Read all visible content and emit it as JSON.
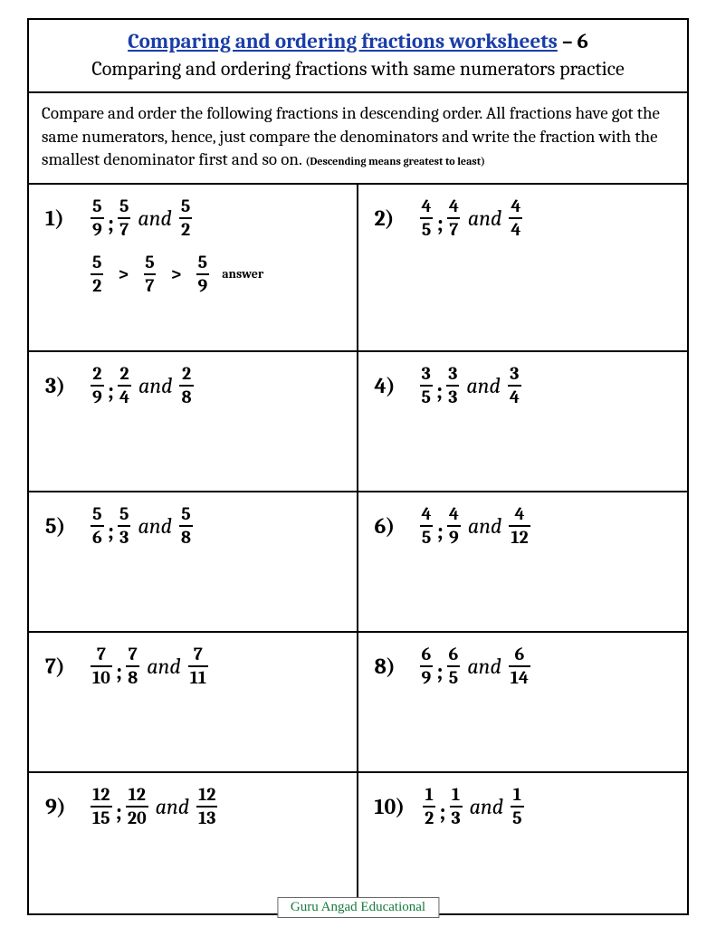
{
  "header": {
    "title_link": "Comparing and ordering fractions worksheets",
    "title_suffix": " – 6",
    "subtitle": "Comparing and ordering fractions with same numerators practice"
  },
  "instructions": {
    "main": "Compare and order the following fractions in descending order. All fractions have got the same numerators, hence, just compare the denominators and write the fraction with the smallest denominator first and so on. ",
    "note": "(Descending means greatest to least)"
  },
  "problems": [
    {
      "num": "1)",
      "fractions": [
        {
          "n": "5",
          "d": "9"
        },
        {
          "n": "5",
          "d": "7"
        },
        {
          "n": "5",
          "d": "2"
        }
      ],
      "answer": [
        {
          "n": "5",
          "d": "2"
        },
        {
          "n": "5",
          "d": "7"
        },
        {
          "n": "5",
          "d": "9"
        }
      ],
      "answer_label": "answer"
    },
    {
      "num": "2)",
      "fractions": [
        {
          "n": "4",
          "d": "5"
        },
        {
          "n": "4",
          "d": "7"
        },
        {
          "n": "4",
          "d": "4"
        }
      ]
    },
    {
      "num": "3)",
      "fractions": [
        {
          "n": "2",
          "d": "9"
        },
        {
          "n": "2",
          "d": "4"
        },
        {
          "n": "2",
          "d": "8"
        }
      ]
    },
    {
      "num": "4)",
      "fractions": [
        {
          "n": "3",
          "d": "5"
        },
        {
          "n": "3",
          "d": "3"
        },
        {
          "n": "3",
          "d": "4"
        }
      ]
    },
    {
      "num": "5)",
      "fractions": [
        {
          "n": "5",
          "d": "6"
        },
        {
          "n": "5",
          "d": "3"
        },
        {
          "n": "5",
          "d": "8"
        }
      ]
    },
    {
      "num": "6)",
      "fractions": [
        {
          "n": "4",
          "d": "5"
        },
        {
          "n": "4",
          "d": "9"
        },
        {
          "n": "4",
          "d": "12"
        }
      ]
    },
    {
      "num": "7)",
      "fractions": [
        {
          "n": "7",
          "d": "10"
        },
        {
          "n": "7",
          "d": "8"
        },
        {
          "n": "7",
          "d": "11"
        }
      ]
    },
    {
      "num": "8)",
      "fractions": [
        {
          "n": "6",
          "d": "9"
        },
        {
          "n": "6",
          "d": "5"
        },
        {
          "n": "6",
          "d": "14"
        }
      ]
    },
    {
      "num": "9)",
      "fractions": [
        {
          "n": "12",
          "d": "15"
        },
        {
          "n": "12",
          "d": "20"
        },
        {
          "n": "12",
          "d": "13"
        }
      ]
    },
    {
      "num": "10)",
      "fractions": [
        {
          "n": "1",
          "d": "2"
        },
        {
          "n": "1",
          "d": "3"
        },
        {
          "n": "1",
          "d": "5"
        }
      ]
    }
  ],
  "and_word": "and",
  "footer": "Guru Angad Educational",
  "colors": {
    "link": "#1a3ea8",
    "footer_text": "#157a3a",
    "border": "#000000",
    "background": "#ffffff"
  }
}
